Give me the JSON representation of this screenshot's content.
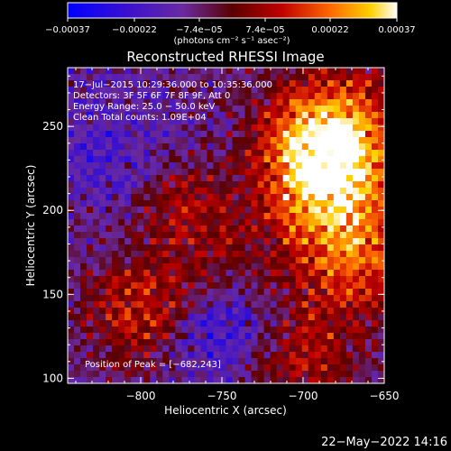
{
  "chart_data": {
    "type": "heatmap",
    "title": "Reconstructed RHESSI Image",
    "xlabel": "Heliocentric X (arcsec)",
    "ylabel": "Heliocentric Y (arcsec)",
    "xlim": [
      -845,
      -650
    ],
    "ylim": [
      97,
      285
    ],
    "x_ticks": [
      -800,
      -750,
      -700,
      -650
    ],
    "y_ticks": [
      100,
      150,
      200,
      250
    ],
    "x_tick_labels": [
      "−800",
      "−750",
      "−700",
      "−650"
    ],
    "y_tick_labels": [
      "100",
      "150",
      "200",
      "250"
    ],
    "colorbar": {
      "range": [
        -0.00037,
        0.00037
      ],
      "tick_values": [
        -0.00037,
        -0.00022,
        -7.4e-05,
        7.4e-05,
        0.00022,
        0.00037
      ],
      "tick_labels": [
        "−0.00037",
        "−0.00022",
        "−7.4e−05",
        "7.4e−05",
        "0.00022",
        "0.00037"
      ],
      "unit_label": "(photons cm⁻² s⁻¹ asec⁻²)"
    },
    "annotations": [
      "17−Jul−2015 10:29:36.000 to 10:35:36.000",
      "Detectors: 3F 5F 6F 7F 8F 9F, Att 0",
      "Energy Range: 25.0 − 50.0 keV",
      "Clean     Total counts: 1.09E+04"
    ],
    "peak_label": "Position of Peak = [−682,243]",
    "peak": [
      -682,
      243
    ],
    "grid": false,
    "legend": "none"
  },
  "footer": {
    "timestamp": "22−May−2022 14:16"
  }
}
